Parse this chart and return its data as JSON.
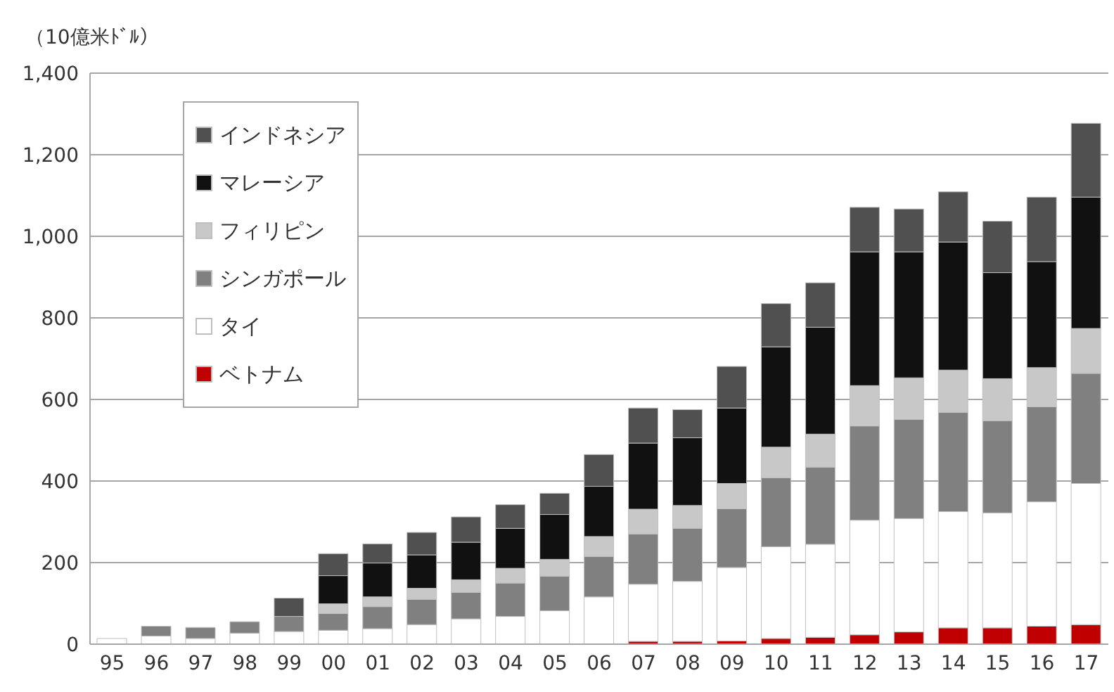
{
  "chart_data": {
    "type": "bar",
    "stacked": true,
    "ylabel": "（10億米ﾄﾞﾙ）",
    "categories": [
      "95",
      "96",
      "97",
      "98",
      "99",
      "00",
      "01",
      "02",
      "03",
      "04",
      "05",
      "06",
      "07",
      "08",
      "09",
      "10",
      "11",
      "12",
      "13",
      "14",
      "15",
      "16",
      "17"
    ],
    "series": [
      {
        "name": "ベトナム",
        "color": "#c00000",
        "values": [
          0,
          0,
          0,
          0,
          0,
          0,
          0,
          0,
          0,
          0,
          0,
          0,
          7,
          7,
          8,
          14,
          17,
          23,
          30,
          40,
          40,
          44,
          48
        ]
      },
      {
        "name": "タイ",
        "color": "#ffffff",
        "values": [
          14,
          20,
          14,
          27,
          31,
          34,
          38,
          48,
          62,
          68,
          82,
          116,
          140,
          147,
          180,
          225,
          228,
          281,
          278,
          285,
          282,
          305,
          346
        ]
      },
      {
        "name": "シンガポール",
        "color": "#808080",
        "values": [
          0,
          24,
          27,
          28,
          37,
          41,
          54,
          62,
          65,
          82,
          85,
          99,
          123,
          130,
          144,
          169,
          189,
          231,
          243,
          243,
          226,
          233,
          270
        ]
      },
      {
        "name": "フィリピン",
        "color": "#c8c8c8",
        "values": [
          0,
          0,
          0,
          0,
          0,
          24,
          24,
          27,
          31,
          36,
          41,
          49,
          61,
          56,
          62,
          75,
          81,
          99,
          102,
          104,
          103,
          96,
          110
        ]
      },
      {
        "name": "マレーシア",
        "color": "#111111",
        "values": [
          0,
          0,
          0,
          0,
          0,
          69,
          83,
          82,
          92,
          98,
          110,
          123,
          162,
          166,
          185,
          246,
          262,
          328,
          309,
          314,
          260,
          260,
          322
        ]
      },
      {
        "name": "インドネシア",
        "color": "#505050",
        "values": [
          0,
          0,
          0,
          0,
          45,
          54,
          47,
          55,
          62,
          58,
          52,
          78,
          86,
          69,
          102,
          106,
          109,
          109,
          105,
          123,
          126,
          158,
          181
        ]
      }
    ],
    "ylim": [
      0,
      1400
    ],
    "yticks": [
      0,
      200,
      400,
      600,
      800,
      {
        "value": 1000,
        "label": "1,000"
      },
      {
        "value": 1200,
        "label": "1,200"
      },
      {
        "value": 1400,
        "label": "1,400"
      }
    ],
    "grid": "y",
    "legend": "top left"
  }
}
